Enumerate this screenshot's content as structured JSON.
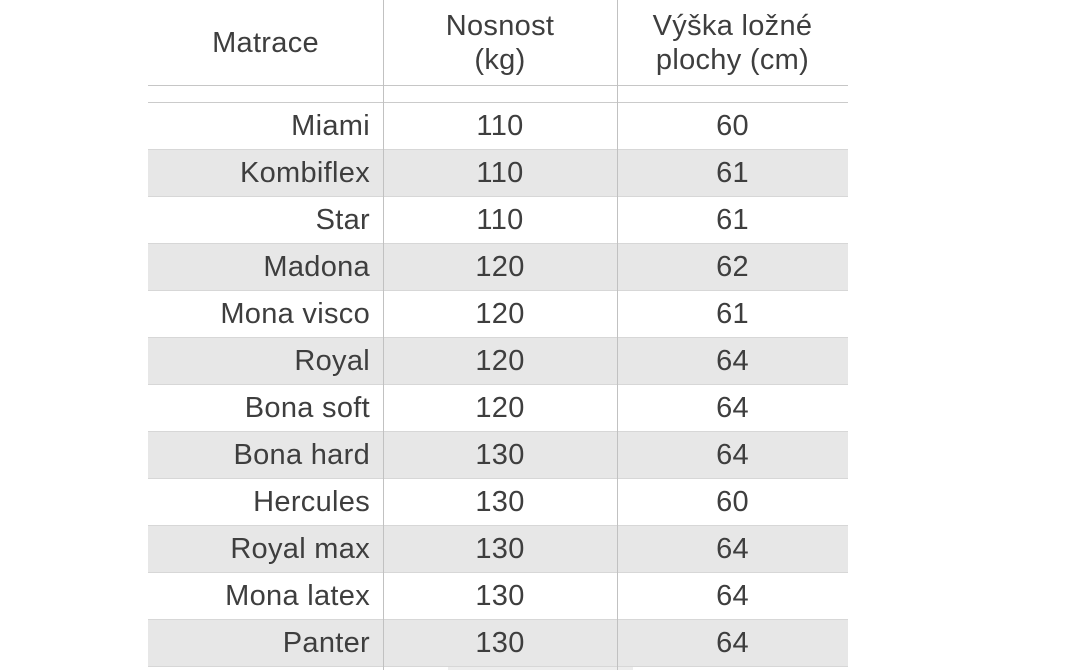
{
  "table": {
    "headers": {
      "matrace": "Matrace",
      "nosnost": "Nosnost\n(kg)",
      "vyska": "Výška ložné\nplochy (cm)"
    },
    "rows": [
      {
        "name": "Miami",
        "nosnost_kg": "110",
        "vyska_cm": "60"
      },
      {
        "name": "Kombiflex",
        "nosnost_kg": "110",
        "vyska_cm": "61"
      },
      {
        "name": "Star",
        "nosnost_kg": "110",
        "vyska_cm": "61"
      },
      {
        "name": "Madona",
        "nosnost_kg": "120",
        "vyska_cm": "62"
      },
      {
        "name": "Mona visco",
        "nosnost_kg": "120",
        "vyska_cm": "61"
      },
      {
        "name": "Royal",
        "nosnost_kg": "120",
        "vyska_cm": "64"
      },
      {
        "name": "Bona soft",
        "nosnost_kg": "120",
        "vyska_cm": "64"
      },
      {
        "name": "Bona hard",
        "nosnost_kg": "130",
        "vyska_cm": "64"
      },
      {
        "name": "Hercules",
        "nosnost_kg": "130",
        "vyska_cm": "60"
      },
      {
        "name": "Royal max",
        "nosnost_kg": "130",
        "vyska_cm": "64"
      },
      {
        "name": "Mona latex",
        "nosnost_kg": "130",
        "vyska_cm": "64"
      },
      {
        "name": "Panter",
        "nosnost_kg": "130",
        "vyska_cm": "64"
      }
    ],
    "colors": {
      "text": "#3e3e3e",
      "striped_row_fill": "#e7e7e7",
      "column_separator": "#c1c1c1",
      "row_border": "#d7d7d7",
      "background": "#ffffff"
    }
  },
  "chart_data": {
    "type": "table",
    "columns": [
      "Matrace",
      "Nosnost (kg)",
      "Výška ložné plochy (cm)"
    ],
    "rows": [
      [
        "Miami",
        110,
        60
      ],
      [
        "Kombiflex",
        110,
        61
      ],
      [
        "Star",
        110,
        61
      ],
      [
        "Madona",
        120,
        62
      ],
      [
        "Mona visco",
        120,
        61
      ],
      [
        "Royal",
        120,
        64
      ],
      [
        "Bona soft",
        120,
        64
      ],
      [
        "Bona hard",
        130,
        64
      ],
      [
        "Hercules",
        130,
        60
      ],
      [
        "Royal max",
        130,
        64
      ],
      [
        "Mona latex",
        130,
        64
      ],
      [
        "Panter",
        130,
        64
      ]
    ],
    "title": "",
    "layout": {
      "striped": true,
      "header_rows": 1,
      "first_column_align": "right",
      "value_columns_align": "center"
    }
  }
}
